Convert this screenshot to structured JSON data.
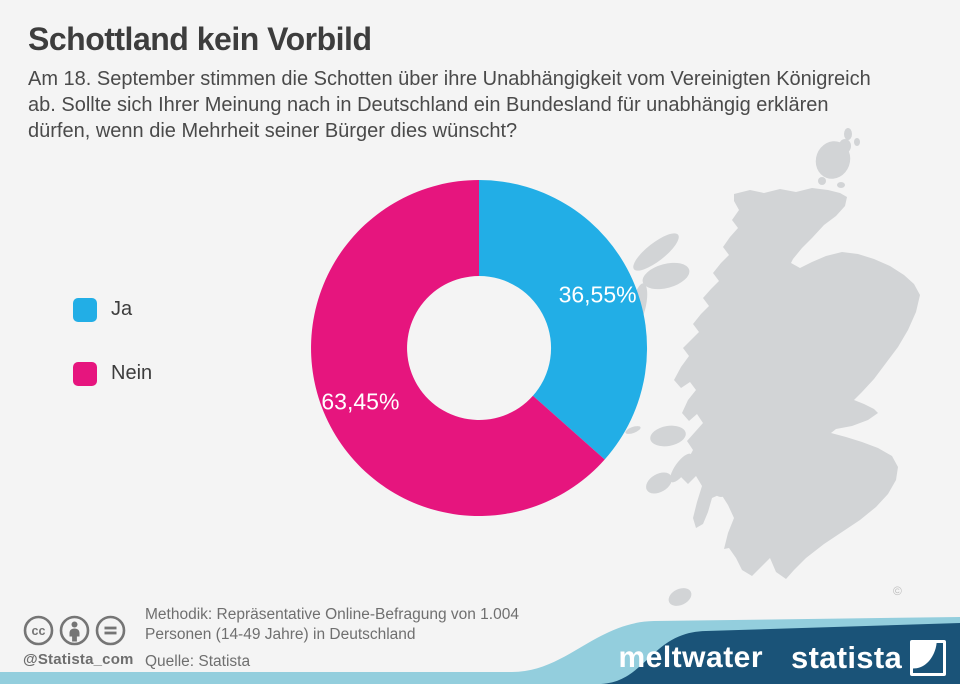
{
  "header": {
    "title": "Schottland kein Vorbild",
    "subtitle_lines": [
      "Am 18. September stimmen die Schotten über ihre Unabhängigkeit vom Vereinigten Königreich",
      "ab. Sollte sich Ihrer Meinung nach in Deutschland ein Bundesland für unabhängig erklären",
      "dürfen, wenn die Mehrheit seiner Bürger dies wünscht?"
    ]
  },
  "chart_data": {
    "type": "pie",
    "subtype": "donut",
    "title": "Schottland kein Vorbild",
    "categories": [
      "Ja",
      "Nein"
    ],
    "values": [
      36.55,
      63.45
    ],
    "value_labels": [
      "36,55%",
      "63,45%"
    ],
    "colors": [
      "#22aee6",
      "#e6157e"
    ],
    "start_angle_deg": 0,
    "direction": "clockwise",
    "legend_position": "left",
    "grid": false
  },
  "legend": {
    "items": [
      {
        "label": "Ja",
        "color": "#22aee6"
      },
      {
        "label": "Nein",
        "color": "#e6157e"
      }
    ]
  },
  "map": {
    "region": "Scotland",
    "credit": "©",
    "color": "#d2d4d6"
  },
  "footer": {
    "icons": [
      "cc-icon",
      "attribution-icon",
      "no-derivatives-icon"
    ],
    "handle": "@Statista_com",
    "methodology_lines": [
      "Methodik: Repräsentative Online-Befragung von 1.004",
      "Personen (14-49 Jahre) in Deutschland"
    ],
    "source": "Quelle: Statista"
  },
  "brandbar": {
    "meltwater_label": "meltwater",
    "statista_label": "statista",
    "navy": "#1a5378",
    "light_blue": "#93cedd"
  }
}
